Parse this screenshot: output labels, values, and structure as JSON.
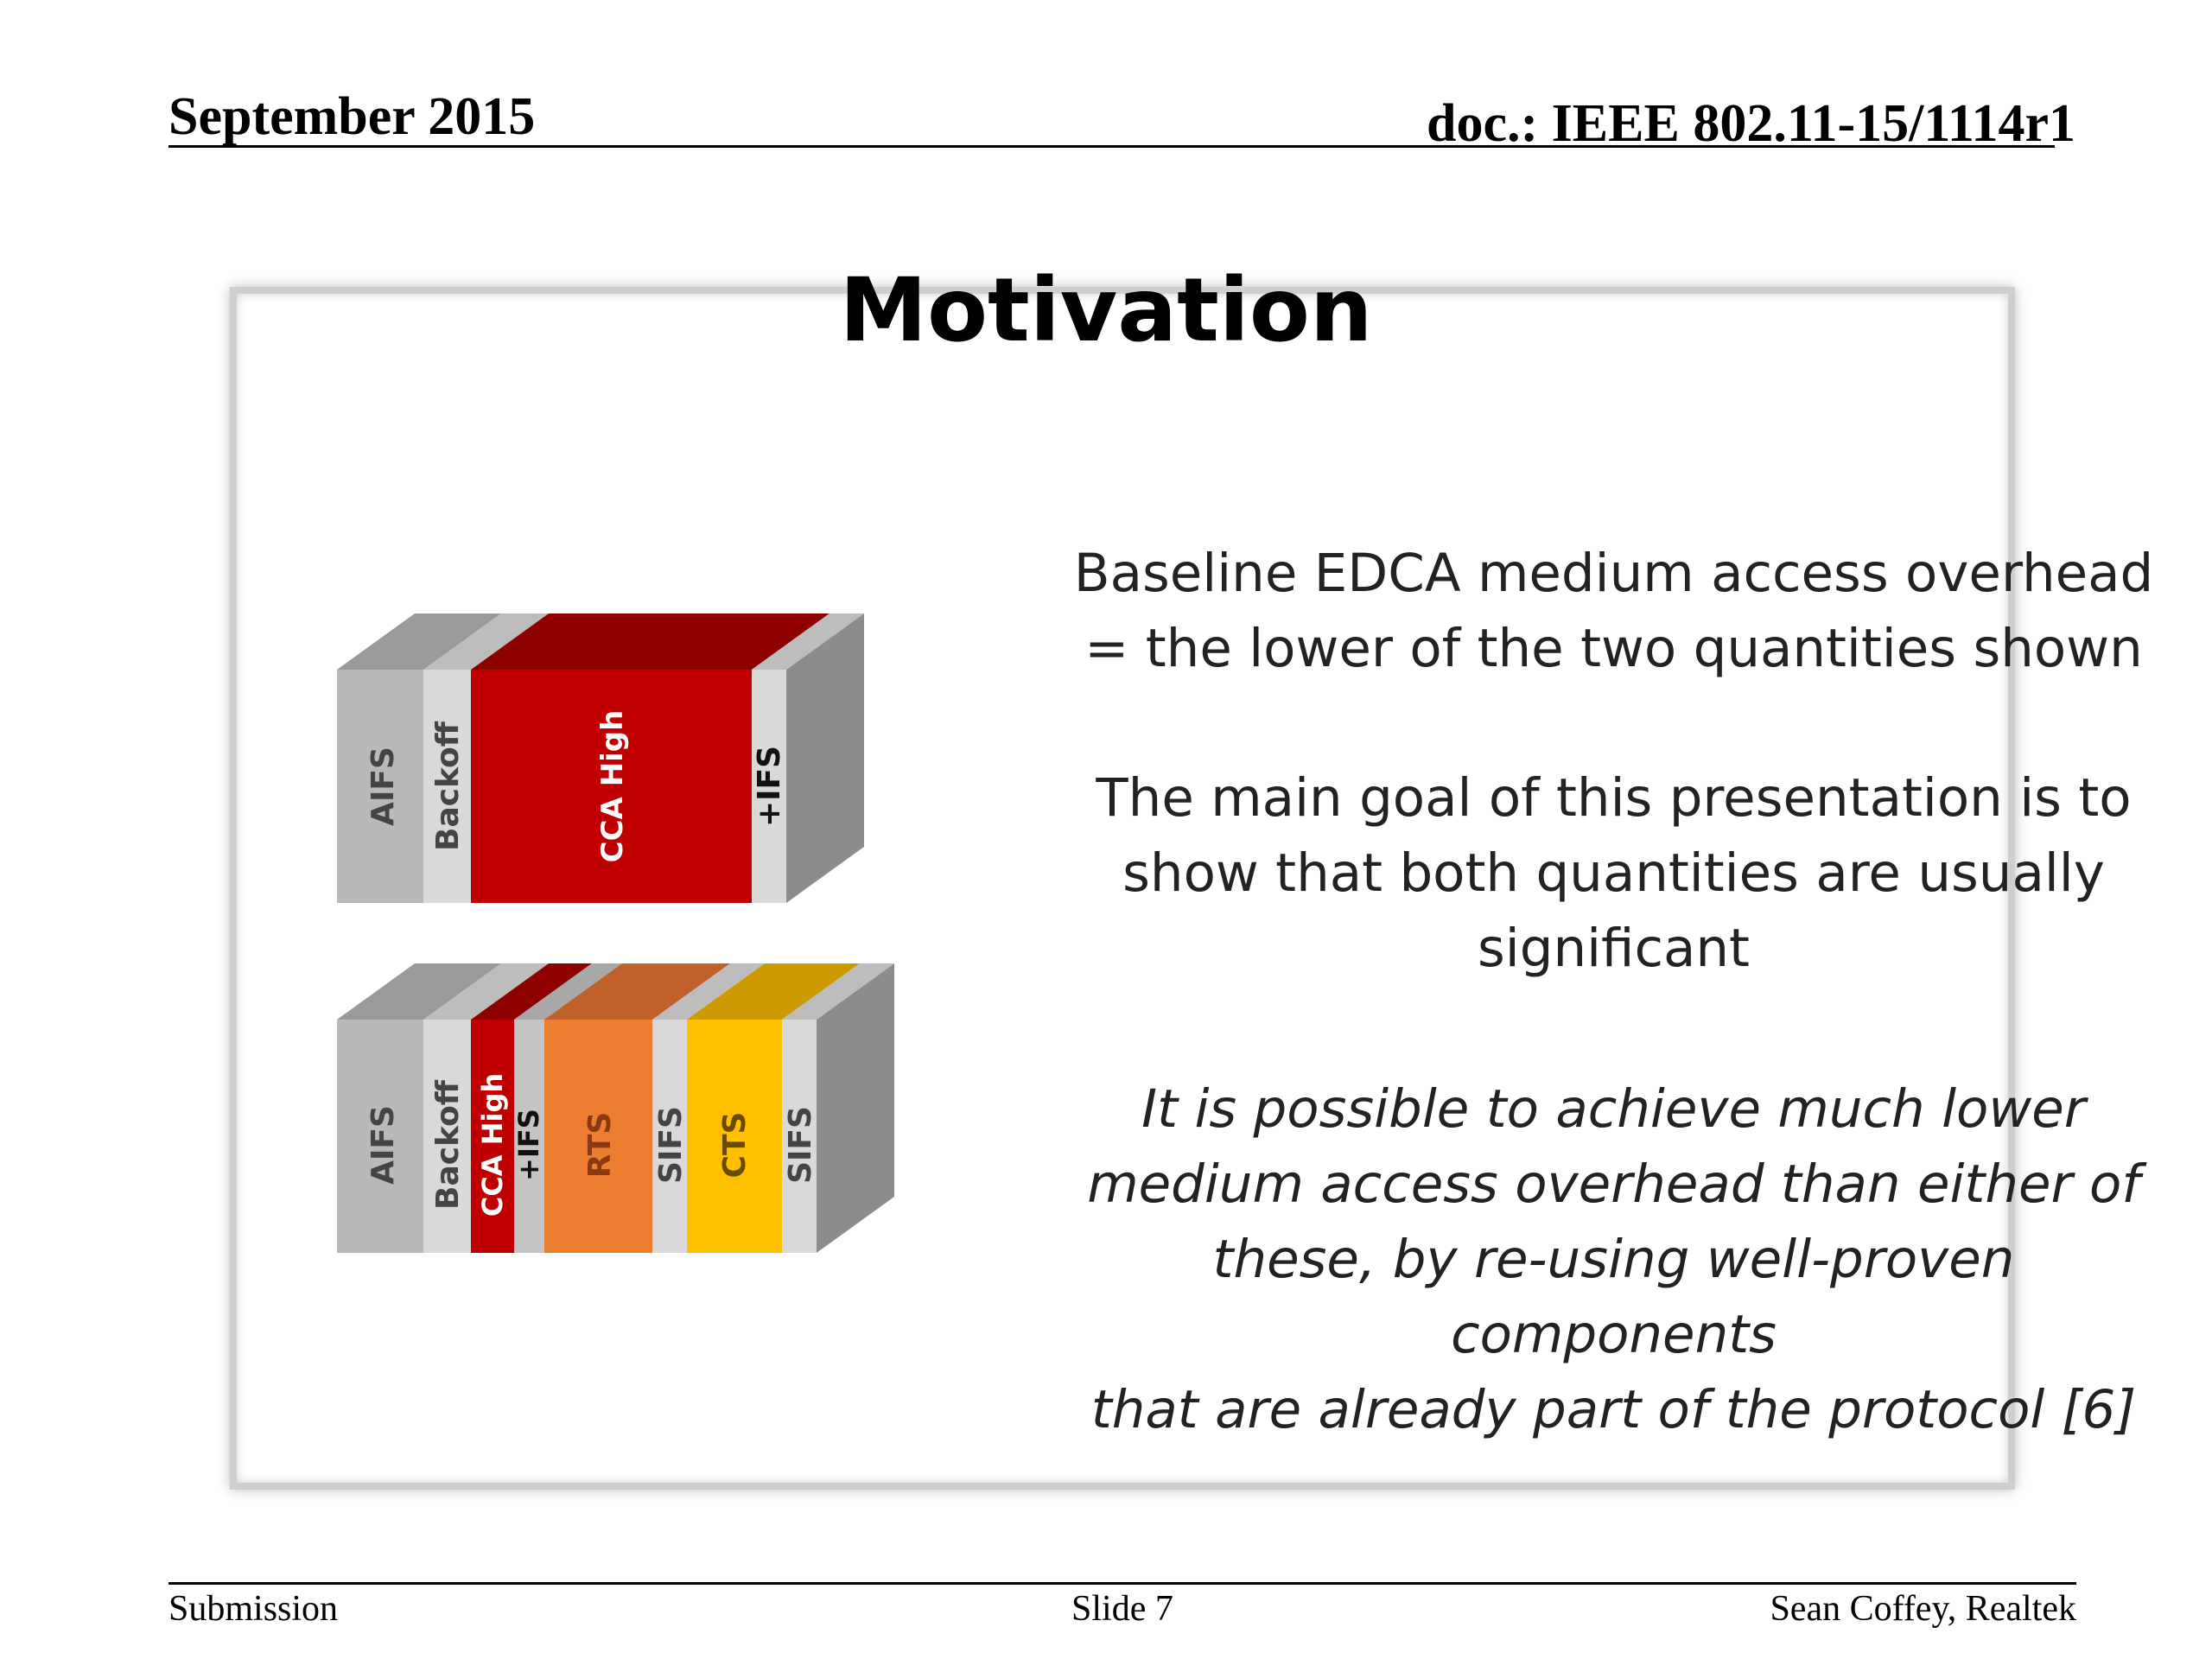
{
  "header": {
    "date": "September 2015",
    "doc_id": "doc.: IEEE 802.11-15/1114r1"
  },
  "title": "Motivation",
  "text": {
    "p1_line1": "Baseline EDCA medium access overhead",
    "p1_line2": "= the lower of the two quantities shown",
    "p2_line1": "The main goal of this presentation is to",
    "p2_line2": "show that both quantities are usually",
    "p2_line3": "significant",
    "p3_line1": "It is possible to achieve much lower",
    "p3_line2": "medium access overhead than either of",
    "p3_line3": "these, by re-using well-proven components",
    "p3_line4": "that are already part of the protocol [6]"
  },
  "diagram": {
    "block1": {
      "segments": [
        {
          "label": "AIFS",
          "color": "#b9b9b9",
          "top": "#9a9a9a"
        },
        {
          "label": "Backoff",
          "color": "#d9d9d9",
          "top": "#bdbdbd"
        },
        {
          "label": "CCA High",
          "color": "#c00000",
          "top": "#8e0000"
        },
        {
          "label": "+IFS",
          "color": "#d9d9d9",
          "top": "#bdbdbd"
        }
      ]
    },
    "block2": {
      "segments": [
        {
          "label": "AIFS",
          "color": "#b9b9b9",
          "top": "#9a9a9a"
        },
        {
          "label": "Backoff",
          "color": "#d9d9d9",
          "top": "#bdbdbd"
        },
        {
          "label": "CCA High",
          "color": "#c00000",
          "top": "#8e0000"
        },
        {
          "label": "+IFS",
          "color": "#c4c4c4",
          "top": "#a8a8a8"
        },
        {
          "label": "RTS",
          "color": "#ed7d31",
          "top": "#c0602a"
        },
        {
          "label": "SIFS",
          "color": "#d9d9d9",
          "top": "#bdbdbd"
        },
        {
          "label": "CTS",
          "color": "#ffc000",
          "top": "#cc9a00"
        },
        {
          "label": "SIFS",
          "color": "#d9d9d9",
          "top": "#bdbdbd"
        }
      ]
    },
    "side_color": "#8c8c8c"
  },
  "footer": {
    "left": "Submission",
    "center": "Slide 7",
    "right": "Sean Coffey, Realtek"
  }
}
